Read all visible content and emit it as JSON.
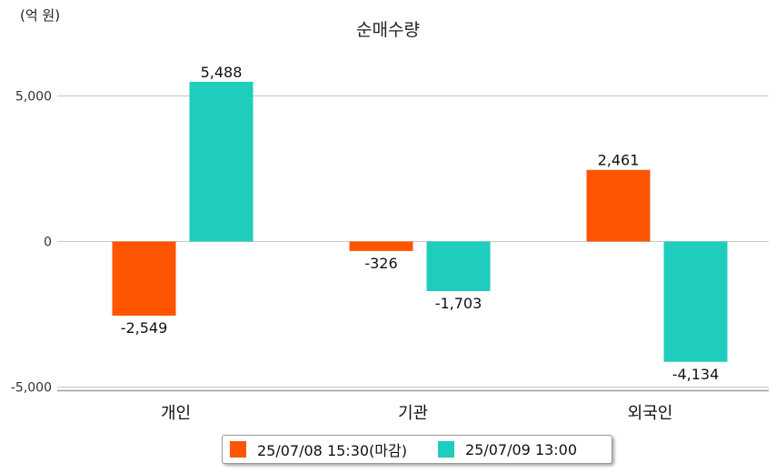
{
  "chart_data": {
    "type": "bar",
    "title": "순매수량",
    "unit_label": "(억 원)",
    "categories": [
      "개인",
      "기관",
      "외국인"
    ],
    "series": [
      {
        "name": "25/07/08 15:30(마감)",
        "color": "#ff5500",
        "values": [
          -2549,
          -326,
          2461
        ]
      },
      {
        "name": "25/07/09 13:00",
        "color": "#1ecdbd",
        "values": [
          5488,
          -1703,
          -4134
        ]
      }
    ],
    "data_labels": [
      [
        "-2,549",
        "-326",
        "2,461"
      ],
      [
        "5,488",
        "-1,703",
        "-4,134"
      ]
    ],
    "yticks": [
      5000,
      0,
      -5000
    ],
    "ytick_labels": [
      "5,000",
      "0",
      "-5,000"
    ],
    "ylim": [
      -5000,
      5000
    ],
    "grid": true,
    "legend_position": "bottom"
  }
}
